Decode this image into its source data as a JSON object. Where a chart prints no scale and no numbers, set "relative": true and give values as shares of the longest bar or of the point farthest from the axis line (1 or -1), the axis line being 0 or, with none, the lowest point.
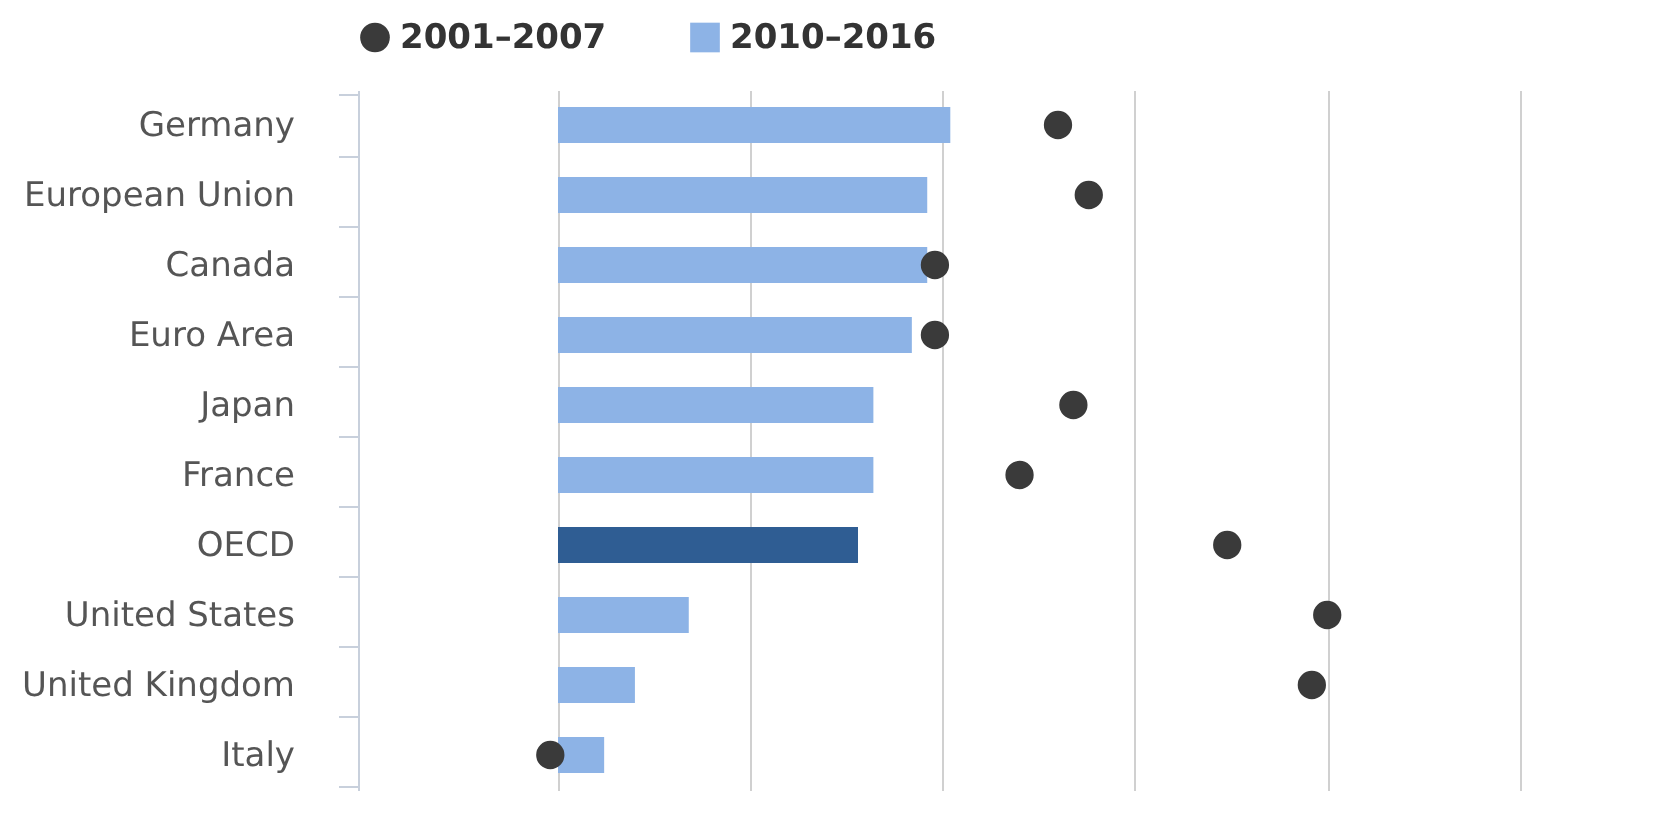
{
  "chart_data": {
    "type": "bar",
    "orientation": "horizontal",
    "relative": true,
    "legend": "top",
    "grid": "x",
    "categories": [
      "Germany",
      "European Union",
      "Canada",
      "Euro Area",
      "Japan",
      "France",
      "OECD",
      "United States",
      "United Kingdom",
      "Italy"
    ],
    "series": [
      {
        "name": "2001–2007",
        "type": "scatter",
        "marker": "circle",
        "color": "#3a3a3a",
        "values": [
          0.65,
          0.69,
          0.49,
          0.49,
          0.67,
          0.6,
          0.87,
          1,
          0.98,
          -0.01
        ]
      },
      {
        "name": "2010–2016",
        "type": "bar",
        "color": "#8db3e6",
        "colors": [
          "#8db3e6",
          "#8db3e6",
          "#8db3e6",
          "#8db3e6",
          "#8db3e6",
          "#8db3e6",
          "#2f5d93",
          "#8db3e6",
          "#8db3e6",
          "#8db3e6"
        ],
        "values": [
          0.51,
          0.48,
          0.48,
          0.46,
          0.41,
          0.41,
          0.39,
          0.17,
          0.1,
          0.06
        ]
      }
    ]
  }
}
